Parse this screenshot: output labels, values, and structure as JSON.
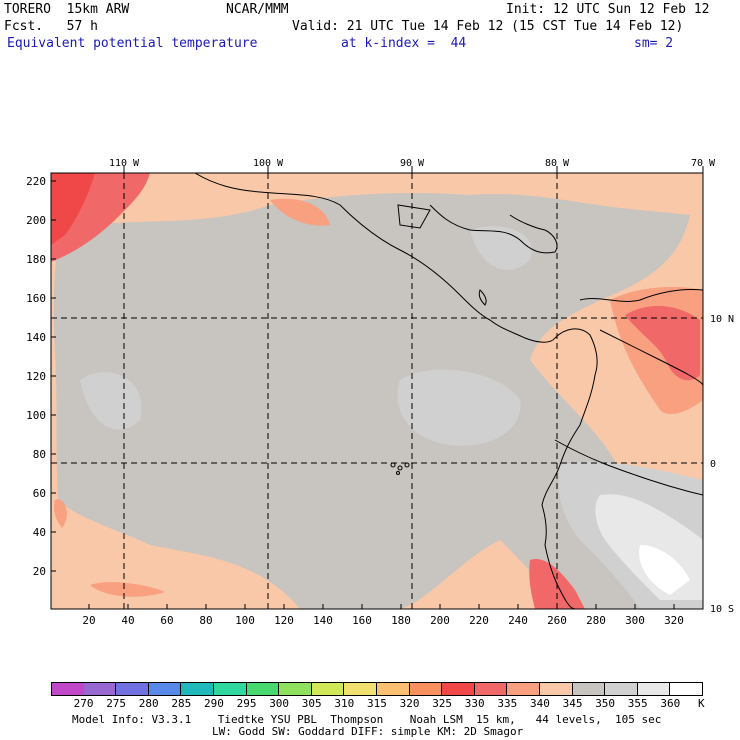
{
  "header": {
    "model": "TORERO  15km ARW",
    "center": "NCAR/MMM",
    "init": "Init: 12 UTC Sun 12 Feb 12",
    "fcst": "Fcst.   57 h",
    "valid": "Valid: 21 UTC Tue 14 Feb 12 (15 CST Tue 14 Feb 12)",
    "field": "Equivalent potential temperature",
    "level": "at k-index =  44",
    "smooth": "sm= 2"
  },
  "map": {
    "top_lon_labels": [
      "110 W",
      "100 W",
      "90 W",
      "80 W",
      "70 W"
    ],
    "right_lat_labels": [
      "10 N",
      "0",
      "10 S"
    ],
    "left_grid_labels": [
      "220",
      "200",
      "180",
      "160",
      "140",
      "120",
      "100",
      "80",
      "60",
      "40",
      "20"
    ],
    "bottom_grid_labels": [
      "20",
      "40",
      "60",
      "80",
      "100",
      "120",
      "140",
      "160",
      "180",
      "200",
      "220",
      "240",
      "260",
      "280",
      "300",
      "320"
    ]
  },
  "colorbar": {
    "unit": "K",
    "labels": [
      "270",
      "275",
      "280",
      "285",
      "290",
      "295",
      "300",
      "305",
      "310",
      "315",
      "320",
      "325",
      "330",
      "335",
      "340",
      "345",
      "350",
      "355",
      "360"
    ],
    "colors": [
      "#c048c8",
      "#9868d0",
      "#7070e0",
      "#5888e8",
      "#20b8b8",
      "#30d8a0",
      "#48d870",
      "#90e060",
      "#d0e858",
      "#f0e070",
      "#f8c070",
      "#f89060",
      "#f04848",
      "#f06868",
      "#f8a080",
      "#f8c8a8",
      "#c8c4c0",
      "#d0d0d0",
      "#e8e8e8",
      "#ffffff"
    ]
  },
  "footer": {
    "line1": "Model Info: V3.3.1    Tiedtke YSU PBL  Thompson    Noah LSM  15 km,   44 levels,  105 sec",
    "line2": "LW: Godd SW: Goddard DIFF: simple KM: 2D Smagor"
  }
}
